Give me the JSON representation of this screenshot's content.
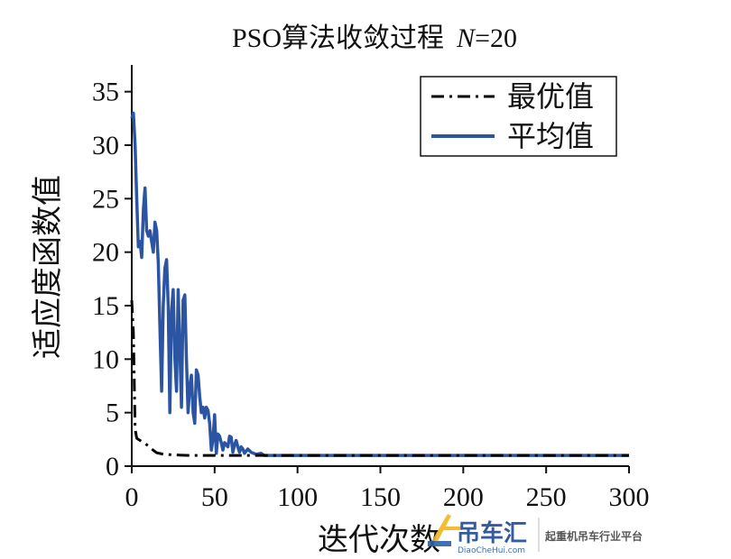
{
  "chart_data": {
    "type": "line",
    "title": "PSO算法收敛过程",
    "title_param_symbol": "N",
    "title_param_value": "=20",
    "xlabel": "迭代次数",
    "ylabel": "适应度函数值",
    "xlim": [
      0,
      300
    ],
    "ylim": [
      0,
      37.5
    ],
    "xticks": [
      0,
      50,
      100,
      150,
      200,
      250,
      300
    ],
    "yticks": [
      0,
      5,
      10,
      15,
      20,
      25,
      30,
      35
    ],
    "grid": false,
    "legend_position": "top-right",
    "series": [
      {
        "name": "最优值",
        "style": "dash-dot",
        "color": "#000000",
        "x": [
          0,
          1,
          2,
          3,
          4,
          5,
          6,
          8,
          10,
          12,
          15,
          18,
          20,
          25,
          30,
          35,
          40,
          45,
          50,
          55,
          60,
          70,
          80,
          100,
          150,
          200,
          250,
          300
        ],
        "y": [
          15.5,
          12.5,
          3.5,
          2.6,
          2.5,
          2.4,
          2.3,
          2.1,
          1.9,
          1.6,
          1.25,
          1.15,
          1.1,
          1.05,
          1.02,
          1.0,
          1.0,
          1.0,
          1.0,
          1.0,
          1.0,
          1.0,
          1.0,
          1.0,
          1.0,
          1.0,
          1.0,
          1.0
        ]
      },
      {
        "name": "平均值",
        "style": "solid",
        "color": "#2B55A2",
        "x": [
          0,
          1,
          2,
          3,
          4,
          5,
          6,
          7,
          8,
          9,
          10,
          11,
          12,
          13,
          14,
          15,
          16,
          17,
          18,
          19,
          20,
          21,
          22,
          23,
          24,
          25,
          26,
          27,
          28,
          29,
          30,
          31,
          32,
          33,
          34,
          35,
          36,
          37,
          38,
          39,
          40,
          41,
          42,
          43,
          44,
          45,
          46,
          47,
          48,
          49,
          50,
          51,
          52,
          53,
          54,
          55,
          56,
          57,
          58,
          59,
          60,
          61,
          62,
          63,
          64,
          65,
          66,
          67,
          68,
          69,
          70,
          72,
          75,
          78,
          80,
          85,
          90,
          100,
          150,
          200,
          250,
          300
        ],
        "y": [
          32.5,
          33.0,
          30.0,
          25.0,
          20.5,
          21.0,
          19.5,
          24.0,
          26.0,
          22.0,
          21.5,
          22.0,
          21.0,
          20.0,
          22.8,
          22.0,
          19.0,
          13.0,
          7.0,
          15.0,
          18.5,
          19.3,
          15.0,
          5.0,
          14.5,
          16.5,
          10.0,
          7.0,
          16.5,
          11.0,
          5.5,
          15.5,
          16.0,
          10.0,
          5.0,
          7.5,
          8.5,
          5.0,
          4.0,
          9.0,
          8.5,
          6.5,
          5.0,
          5.5,
          4.5,
          5.5,
          5.2,
          4.0,
          1.5,
          2.5,
          4.8,
          1.2,
          3.0,
          2.8,
          2.2,
          1.5,
          2.2,
          2.0,
          1.8,
          2.8,
          2.7,
          1.3,
          2.0,
          2.4,
          1.8,
          1.3,
          1.8,
          1.6,
          1.2,
          1.4,
          1.6,
          1.3,
          1.1,
          1.2,
          1.0,
          1.0,
          1.0,
          1.0,
          1.0,
          1.0,
          1.0,
          1.0
        ]
      }
    ]
  },
  "watermark": {
    "brand": "吊车汇",
    "site": "DiaoCheHui.com",
    "slogan": "起重机吊车行业平台"
  }
}
